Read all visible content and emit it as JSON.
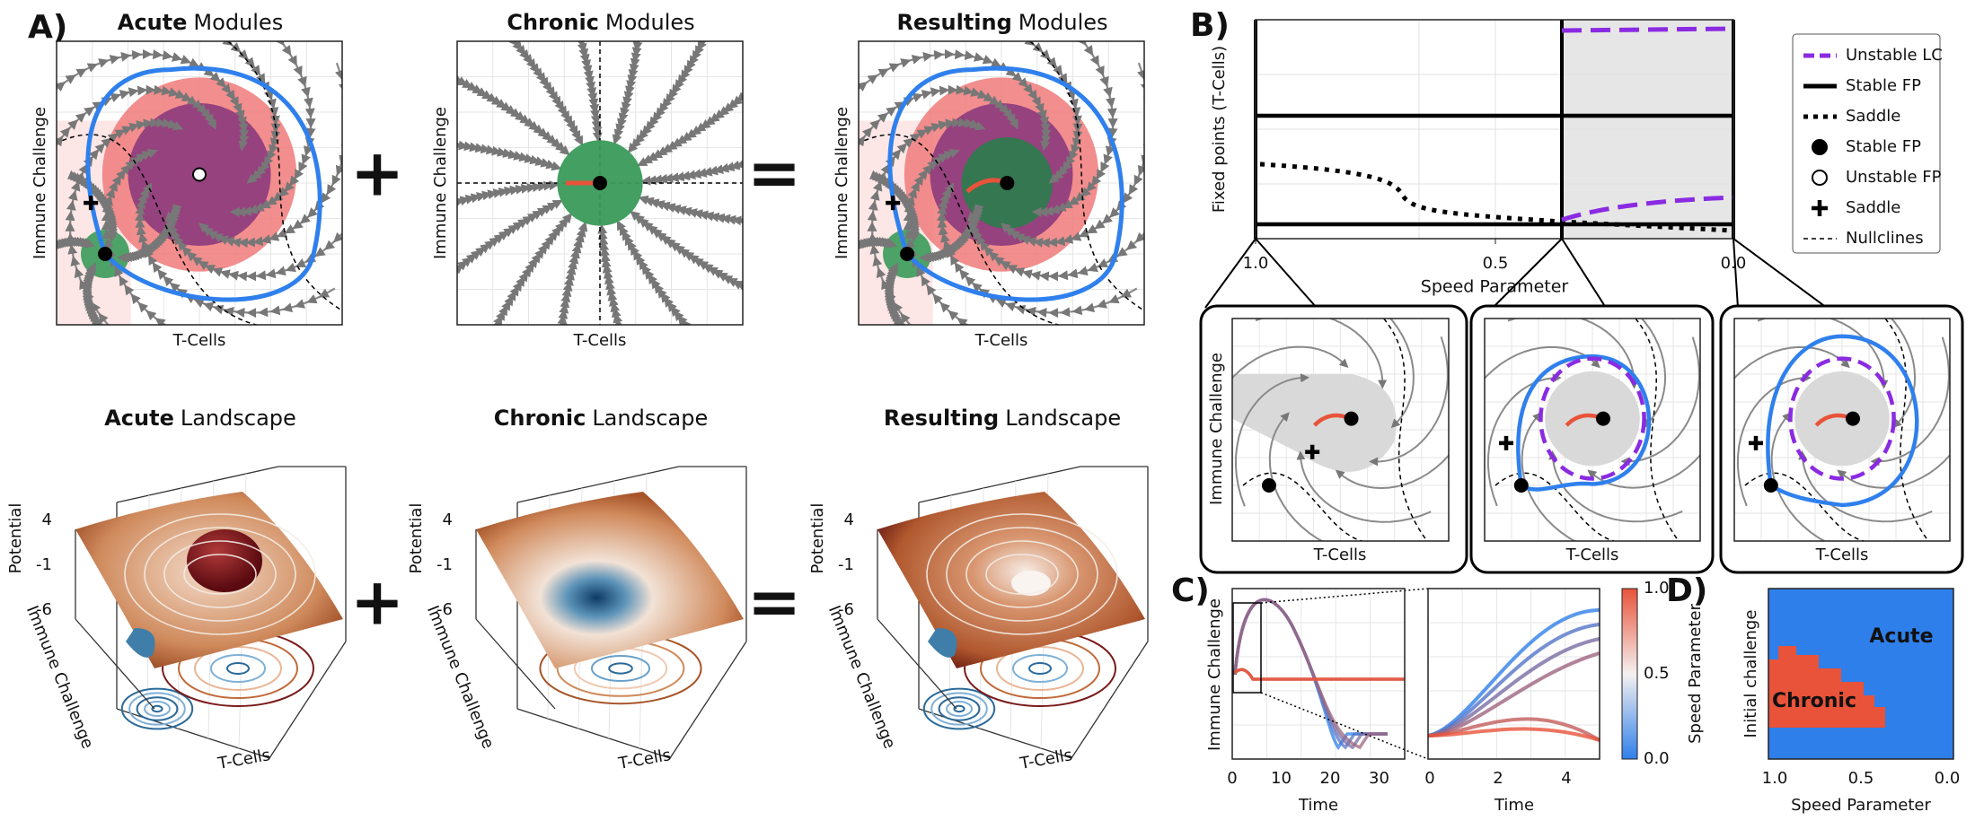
{
  "panel_labels": [
    "A)",
    "B)",
    "C)",
    "D)"
  ],
  "panel_a": {
    "modules": [
      {
        "bold": "Acute",
        "rest": "Modules"
      },
      {
        "bold": "Chronic",
        "rest": "Modules"
      },
      {
        "bold": "Resulting",
        "rest": "Modules"
      }
    ],
    "landscapes": [
      {
        "bold": "Acute",
        "rest": "Landscape"
      },
      {
        "bold": "Chronic",
        "rest": "Landscape"
      },
      {
        "bold": "Resulting",
        "rest": "Landscape"
      }
    ],
    "plus": "+",
    "equals": "=",
    "x_label": "T-Cells",
    "y_label": "Immune Challenge",
    "potential_label": "Potential",
    "potential_ticks": [
      "4",
      "-1",
      "-6"
    ]
  },
  "panel_b": {
    "y_label": "Fixed points (T-Cells)",
    "x_label": "Speed Parameter",
    "x_ticks": [
      "1.0",
      "0.5",
      "0.0"
    ],
    "legend": [
      "Unstable LC",
      "Stable FP",
      "Saddle",
      "Stable FP",
      "Unstable FP",
      "Saddle",
      "Nullclines"
    ],
    "inset_x_label": "T-Cells",
    "inset_y_label": "Immune Challenge"
  },
  "panel_c": {
    "y_label": "Immune Challenge",
    "x_label": "Time",
    "left_x_ticks": [
      "0",
      "10",
      "20",
      "30"
    ],
    "right_x_ticks": [
      "0",
      "2",
      "4"
    ],
    "colorbar_label": "Speed Parameter",
    "colorbar_ticks": [
      "1.0",
      "0.5",
      "0.0"
    ]
  },
  "panel_d": {
    "y_label": "Initial challenge",
    "x_label": "Speed Parameter",
    "x_ticks": [
      "1.0",
      "0.5",
      "0.0"
    ],
    "regions": [
      "Acute",
      "Chronic"
    ]
  }
}
